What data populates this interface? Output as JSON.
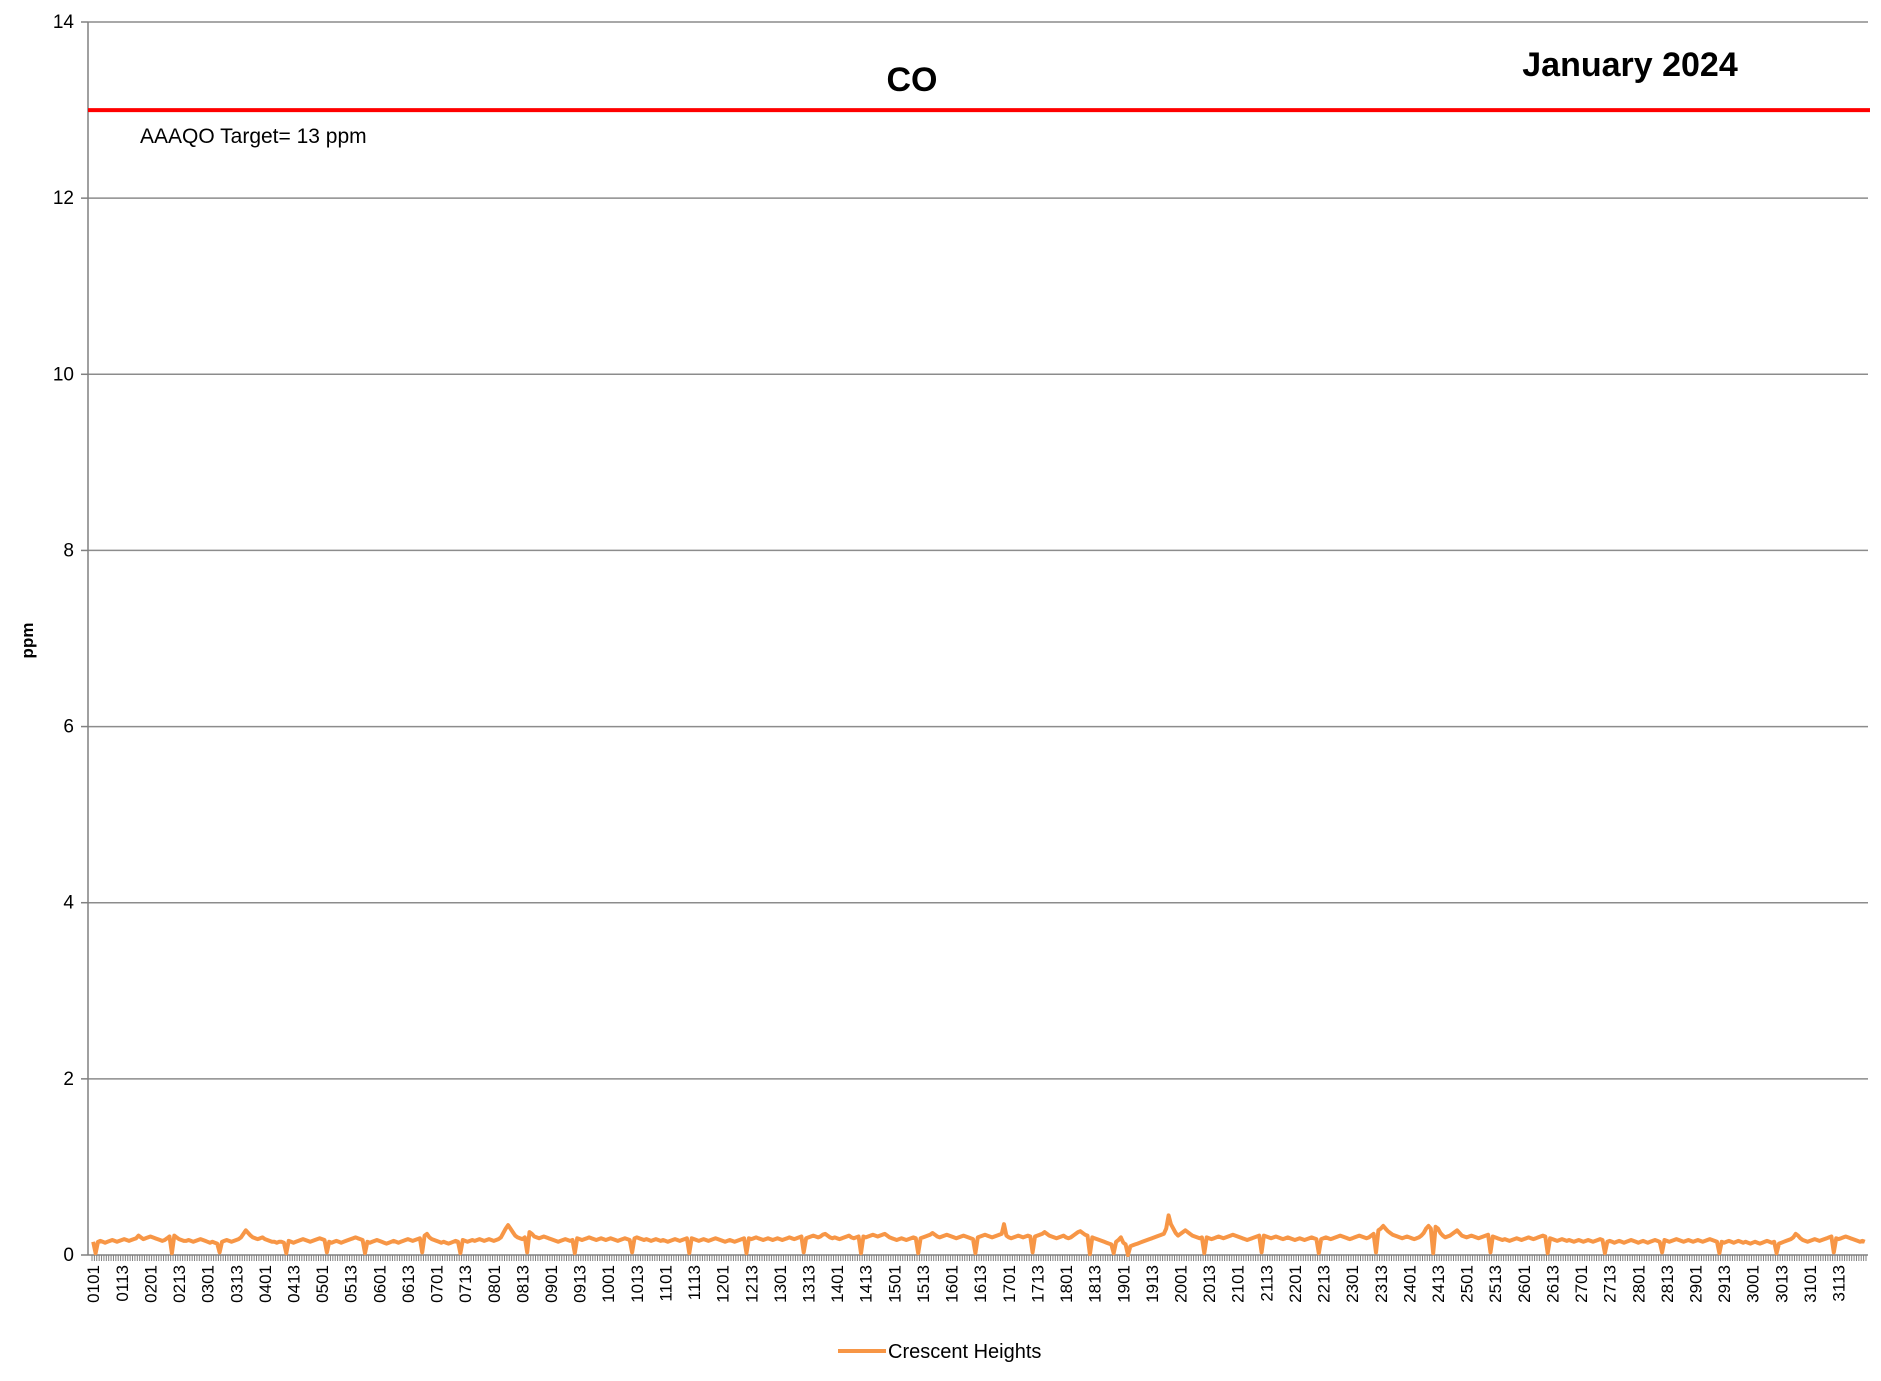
{
  "chart_data": {
    "type": "line",
    "title": "CO",
    "subtitle": "January 2024",
    "xlabel": "",
    "ylabel": "ppm",
    "ylim": [
      0,
      14
    ],
    "yticks": [
      0,
      2,
      4,
      6,
      8,
      10,
      12,
      14
    ],
    "grid": true,
    "legend_position": "bottom",
    "x_tick_labels": [
      "0101",
      "0113",
      "0201",
      "0213",
      "0301",
      "0313",
      "0401",
      "0413",
      "0501",
      "0513",
      "0601",
      "0613",
      "0701",
      "0713",
      "0801",
      "0813",
      "0901",
      "0913",
      "1001",
      "1013",
      "1101",
      "1113",
      "1201",
      "1213",
      "1301",
      "1313",
      "1401",
      "1413",
      "1501",
      "1513",
      "1601",
      "1613",
      "1701",
      "1713",
      "1801",
      "1813",
      "1901",
      "1913",
      "2001",
      "2013",
      "2101",
      "2113",
      "2201",
      "2213",
      "2301",
      "2313",
      "2401",
      "2413",
      "2501",
      "2513",
      "2601",
      "2613",
      "2701",
      "2713",
      "2801",
      "2813",
      "2901",
      "2913",
      "3001",
      "3013",
      "3101",
      "3113"
    ],
    "reference_line": {
      "value": 13,
      "label": "AAAQO Target= 13 ppm",
      "color": "#ff0000"
    },
    "series": [
      {
        "name": "Crescent Heights",
        "color": "#f79646",
        "points_per_day": 24,
        "values_by_day": [
          [
            0.15,
            0.14,
            0.15,
            0.16,
            0.15,
            0.14,
            0.15,
            0.16,
            0.17,
            0.16,
            0.15,
            0.16,
            0.17,
            0.18,
            0.17,
            0.16,
            0.17,
            0.18,
            0.19,
            0.22,
            0.2,
            0.18,
            0.19,
            0.2
          ],
          [
            0.21,
            0.2,
            0.19,
            0.18,
            0.17,
            0.16,
            0.17,
            0.19,
            0.21,
            0.23,
            0.22,
            0.2,
            0.18,
            0.17,
            0.16,
            0.16,
            0.17,
            0.16,
            0.15,
            0.16,
            0.17,
            0.18,
            0.17,
            0.16
          ],
          [
            0.15,
            0.14,
            0.15,
            0.14,
            0.13,
            0.14,
            0.15,
            0.16,
            0.17,
            0.16,
            0.15,
            0.16,
            0.17,
            0.18,
            0.2,
            0.24,
            0.28,
            0.25,
            0.22,
            0.2,
            0.19,
            0.18,
            0.19,
            0.2
          ],
          [
            0.18,
            0.17,
            0.16,
            0.15,
            0.15,
            0.14,
            0.15,
            0.15,
            0.14,
            0.15,
            0.16,
            0.15,
            0.14,
            0.15,
            0.16,
            0.17,
            0.18,
            0.17,
            0.16,
            0.15,
            0.16,
            0.17,
            0.18,
            0.19
          ],
          [
            0.18,
            0.17,
            0.16,
            0.15,
            0.14,
            0.15,
            0.16,
            0.15,
            0.14,
            0.15,
            0.16,
            0.17,
            0.18,
            0.19,
            0.2,
            0.19,
            0.18,
            0.17,
            0.16,
            0.15,
            0.14,
            0.15,
            0.16,
            0.17
          ],
          [
            0.16,
            0.15,
            0.14,
            0.13,
            0.14,
            0.15,
            0.16,
            0.15,
            0.14,
            0.15,
            0.16,
            0.17,
            0.18,
            0.17,
            0.16,
            0.17,
            0.18,
            0.19,
            0.2,
            0.22,
            0.24,
            0.2,
            0.18,
            0.17
          ],
          [
            0.16,
            0.15,
            0.14,
            0.15,
            0.14,
            0.13,
            0.14,
            0.15,
            0.16,
            0.15,
            0.16,
            0.17,
            0.16,
            0.15,
            0.16,
            0.17,
            0.16,
            0.17,
            0.18,
            0.17,
            0.16,
            0.17,
            0.18,
            0.17
          ],
          [
            0.16,
            0.17,
            0.18,
            0.2,
            0.25,
            0.3,
            0.34,
            0.3,
            0.26,
            0.22,
            0.2,
            0.19,
            0.18,
            0.2,
            0.23,
            0.26,
            0.24,
            0.21,
            0.2,
            0.19,
            0.2,
            0.21,
            0.2,
            0.19
          ],
          [
            0.18,
            0.17,
            0.16,
            0.15,
            0.16,
            0.17,
            0.18,
            0.17,
            0.16,
            0.17,
            0.18,
            0.19,
            0.18,
            0.17,
            0.18,
            0.19,
            0.2,
            0.19,
            0.18,
            0.17,
            0.18,
            0.19,
            0.18,
            0.17
          ],
          [
            0.18,
            0.19,
            0.18,
            0.17,
            0.16,
            0.17,
            0.18,
            0.19,
            0.18,
            0.17,
            0.18,
            0.19,
            0.2,
            0.19,
            0.18,
            0.17,
            0.18,
            0.17,
            0.16,
            0.17,
            0.18,
            0.17,
            0.16,
            0.17
          ],
          [
            0.16,
            0.15,
            0.16,
            0.17,
            0.18,
            0.17,
            0.16,
            0.17,
            0.18,
            0.19,
            0.2,
            0.19,
            0.18,
            0.17,
            0.16,
            0.17,
            0.18,
            0.17,
            0.16,
            0.17,
            0.18,
            0.19,
            0.18,
            0.17
          ],
          [
            0.16,
            0.15,
            0.16,
            0.17,
            0.16,
            0.15,
            0.16,
            0.17,
            0.18,
            0.19,
            0.2,
            0.19,
            0.18,
            0.19,
            0.2,
            0.19,
            0.18,
            0.17,
            0.18,
            0.19,
            0.18,
            0.17,
            0.18,
            0.19
          ],
          [
            0.18,
            0.17,
            0.18,
            0.19,
            0.2,
            0.19,
            0.18,
            0.19,
            0.2,
            0.21,
            0.2,
            0.19,
            0.2,
            0.21,
            0.22,
            0.21,
            0.2,
            0.21,
            0.23,
            0.24,
            0.22,
            0.2,
            0.19,
            0.2
          ],
          [
            0.19,
            0.18,
            0.19,
            0.2,
            0.21,
            0.22,
            0.2,
            0.19,
            0.2,
            0.21,
            0.22,
            0.21,
            0.2,
            0.21,
            0.22,
            0.23,
            0.22,
            0.21,
            0.22,
            0.23,
            0.24,
            0.22,
            0.2,
            0.19
          ],
          [
            0.18,
            0.17,
            0.18,
            0.19,
            0.18,
            0.17,
            0.18,
            0.19,
            0.2,
            0.19,
            0.18,
            0.19,
            0.2,
            0.21,
            0.22,
            0.23,
            0.25,
            0.23,
            0.21,
            0.2,
            0.21,
            0.22,
            0.23,
            0.22
          ],
          [
            0.21,
            0.2,
            0.19,
            0.2,
            0.21,
            0.22,
            0.21,
            0.2,
            0.19,
            0.18,
            0.19,
            0.2,
            0.21,
            0.22,
            0.23,
            0.22,
            0.21,
            0.2,
            0.21,
            0.22,
            0.23,
            0.24,
            0.35,
            0.22
          ],
          [
            0.2,
            0.19,
            0.2,
            0.21,
            0.22,
            0.21,
            0.2,
            0.21,
            0.22,
            0.21,
            0.2,
            0.21,
            0.22,
            0.23,
            0.24,
            0.26,
            0.24,
            0.22,
            0.21,
            0.2,
            0.19,
            0.2,
            0.21,
            0.22
          ],
          [
            0.2,
            0.19,
            0.2,
            0.22,
            0.24,
            0.26,
            0.27,
            0.25,
            0.23,
            0.22,
            0.21,
            0.2,
            0.19,
            0.18,
            0.17,
            0.16,
            0.15,
            0.14,
            0.13,
            0.12,
            0.13,
            0.15,
            0.17,
            0.2
          ],
          [
            0.14,
            0.12,
            0.1,
            0.1,
            0.11,
            0.12,
            0.13,
            0.14,
            0.15,
            0.16,
            0.17,
            0.18,
            0.19,
            0.2,
            0.21,
            0.22,
            0.23,
            0.24,
            0.3,
            0.45,
            0.35,
            0.3,
            0.25,
            0.22
          ],
          [
            0.24,
            0.26,
            0.28,
            0.26,
            0.24,
            0.22,
            0.21,
            0.2,
            0.19,
            0.2,
            0.21,
            0.2,
            0.19,
            0.18,
            0.19,
            0.2,
            0.21,
            0.2,
            0.19,
            0.2,
            0.21,
            0.22,
            0.23,
            0.22
          ],
          [
            0.21,
            0.2,
            0.19,
            0.18,
            0.17,
            0.18,
            0.19,
            0.2,
            0.21,
            0.22,
            0.23,
            0.22,
            0.21,
            0.2,
            0.19,
            0.2,
            0.21,
            0.2,
            0.19,
            0.18,
            0.19,
            0.2,
            0.19,
            0.18
          ],
          [
            0.17,
            0.18,
            0.19,
            0.18,
            0.17,
            0.18,
            0.19,
            0.2,
            0.19,
            0.18,
            0.17,
            0.18,
            0.19,
            0.2,
            0.19,
            0.18,
            0.19,
            0.2,
            0.21,
            0.22,
            0.21,
            0.2,
            0.19,
            0.18
          ],
          [
            0.19,
            0.2,
            0.21,
            0.22,
            0.21,
            0.2,
            0.19,
            0.2,
            0.22,
            0.24,
            0.26,
            0.28,
            0.3,
            0.33,
            0.3,
            0.27,
            0.25,
            0.23,
            0.22,
            0.21,
            0.2,
            0.19,
            0.2,
            0.21
          ],
          [
            0.2,
            0.19,
            0.18,
            0.19,
            0.2,
            0.22,
            0.25,
            0.3,
            0.33,
            0.3,
            0.28,
            0.32,
            0.3,
            0.25,
            0.22,
            0.2,
            0.21,
            0.22,
            0.24,
            0.26,
            0.28,
            0.25,
            0.22,
            0.21
          ],
          [
            0.2,
            0.21,
            0.22,
            0.21,
            0.2,
            0.19,
            0.2,
            0.21,
            0.22,
            0.23,
            0.22,
            0.21,
            0.2,
            0.19,
            0.18,
            0.17,
            0.18,
            0.17,
            0.16,
            0.17,
            0.18,
            0.19,
            0.18,
            0.17
          ],
          [
            0.18,
            0.19,
            0.2,
            0.19,
            0.18,
            0.19,
            0.2,
            0.21,
            0.22,
            0.21,
            0.2,
            0.19,
            0.18,
            0.17,
            0.16,
            0.17,
            0.18,
            0.17,
            0.16,
            0.17,
            0.16,
            0.15,
            0.16,
            0.17
          ],
          [
            0.16,
            0.15,
            0.16,
            0.17,
            0.16,
            0.15,
            0.16,
            0.17,
            0.18,
            0.17,
            0.16,
            0.15,
            0.16,
            0.15,
            0.14,
            0.15,
            0.16,
            0.15,
            0.14,
            0.15,
            0.16,
            0.17,
            0.16,
            0.15
          ],
          [
            0.14,
            0.15,
            0.16,
            0.15,
            0.14,
            0.15,
            0.16,
            0.17,
            0.16,
            0.15,
            0.16,
            0.17,
            0.16,
            0.15,
            0.16,
            0.17,
            0.18,
            0.17,
            0.16,
            0.15,
            0.16,
            0.17,
            0.16,
            0.15
          ],
          [
            0.16,
            0.17,
            0.16,
            0.15,
            0.16,
            0.17,
            0.18,
            0.17,
            0.16,
            0.15,
            0.16,
            0.15,
            0.14,
            0.15,
            0.16,
            0.15,
            0.14,
            0.15,
            0.16,
            0.15,
            0.14,
            0.15,
            0.14,
            0.13
          ],
          [
            0.14,
            0.15,
            0.14,
            0.13,
            0.14,
            0.15,
            0.16,
            0.15,
            0.14,
            0.15,
            0.14,
            0.13,
            0.14,
            0.15,
            0.16,
            0.17,
            0.18,
            0.2,
            0.24,
            0.22,
            0.19,
            0.17,
            0.16,
            0.15
          ],
          [
            0.16,
            0.17,
            0.18,
            0.17,
            0.16,
            0.17,
            0.18,
            0.19,
            0.2,
            0.21,
            0.2,
            0.19,
            0.18,
            0.19,
            0.2,
            0.21,
            0.2,
            0.19,
            0.18,
            0.17,
            0.16,
            0.15,
            0.16,
            0.15
          ]
        ],
        "dip_points": [
          [
            0,
            1,
            0.02
          ],
          [
            1,
            9,
            0.02
          ],
          [
            2,
            5,
            0.03
          ],
          [
            3,
            9,
            0.02
          ],
          [
            4,
            2,
            0.03
          ],
          [
            4,
            18,
            0.02
          ],
          [
            5,
            18,
            0.03
          ],
          [
            6,
            10,
            0.02
          ],
          [
            7,
            14,
            0.03
          ],
          [
            8,
            10,
            0.02
          ],
          [
            9,
            10,
            0.03
          ],
          [
            10,
            10,
            0.02
          ],
          [
            11,
            10,
            0.02
          ],
          [
            12,
            10,
            0.03
          ],
          [
            13,
            10,
            0.02
          ],
          [
            14,
            10,
            0.02
          ],
          [
            15,
            10,
            0.02
          ],
          [
            16,
            10,
            0.03
          ],
          [
            17,
            10,
            0.01
          ],
          [
            17,
            20,
            0.02
          ],
          [
            18,
            2,
            0.0
          ],
          [
            19,
            10,
            0.02
          ],
          [
            20,
            10,
            0.03
          ],
          [
            21,
            10,
            0.02
          ],
          [
            22,
            10,
            0.03
          ],
          [
            23,
            10,
            0.02
          ],
          [
            24,
            10,
            0.03
          ],
          [
            25,
            10,
            0.02
          ],
          [
            26,
            10,
            0.02
          ],
          [
            27,
            10,
            0.03
          ],
          [
            28,
            10,
            0.02
          ],
          [
            29,
            10,
            0.02
          ],
          [
            30,
            10,
            0.03
          ]
        ]
      }
    ]
  }
}
